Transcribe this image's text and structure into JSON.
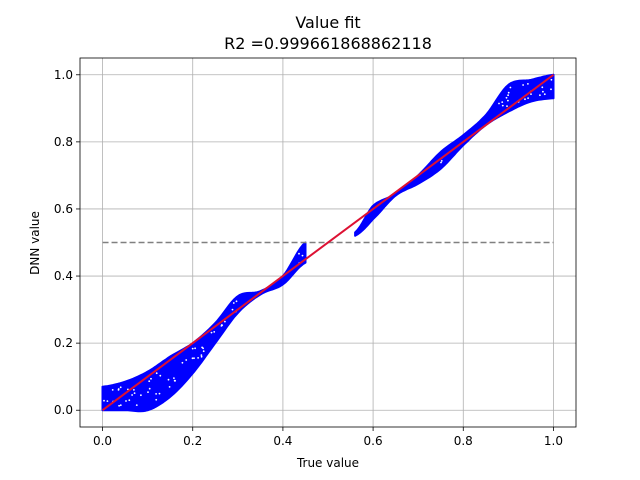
{
  "chart_data": {
    "type": "scatter",
    "title": "Value fit",
    "subtitle": "R2 =0.999661868862118",
    "xlabel": "True value",
    "ylabel": "DNN value",
    "xlim": [
      -0.05,
      1.05
    ],
    "ylim": [
      -0.05,
      1.05
    ],
    "xticks": [
      0.0,
      0.2,
      0.4,
      0.6,
      0.8,
      1.0
    ],
    "yticks": [
      0.0,
      0.2,
      0.4,
      0.6,
      0.8,
      1.0
    ],
    "xtick_labels": [
      "0.0",
      "0.2",
      "0.4",
      "0.6",
      "0.8",
      "1.0"
    ],
    "ytick_labels": [
      "0.0",
      "0.2",
      "0.4",
      "0.6",
      "0.8",
      "1.0"
    ],
    "grid": true,
    "series": [
      {
        "kind": "scatter-band",
        "color": "#0000ff",
        "x": [
          0.0,
          0.05,
          0.1,
          0.15,
          0.2,
          0.25,
          0.3,
          0.35,
          0.4,
          0.45
        ],
        "y_upper": [
          0.07,
          0.085,
          0.115,
          0.16,
          0.2,
          0.26,
          0.34,
          0.355,
          0.4,
          0.5
        ],
        "y_lower": [
          0.0,
          0.0,
          0.0,
          0.04,
          0.11,
          0.2,
          0.29,
          0.345,
          0.375,
          0.44
        ]
      },
      {
        "kind": "scatter-band",
        "color": "#0000ff",
        "x": [
          0.56,
          0.6,
          0.65,
          0.7,
          0.75,
          0.8,
          0.85,
          0.9,
          0.95,
          1.0
        ],
        "y_upper": [
          0.53,
          0.61,
          0.645,
          0.7,
          0.77,
          0.82,
          0.88,
          0.97,
          0.985,
          1.0
        ],
        "y_lower": [
          0.52,
          0.57,
          0.64,
          0.675,
          0.72,
          0.79,
          0.85,
          0.89,
          0.92,
          0.93
        ]
      },
      {
        "kind": "line",
        "color": "#dd1133",
        "x": [
          0.0,
          1.0
        ],
        "y": [
          0.0,
          1.0
        ]
      },
      {
        "kind": "dashed-line",
        "color": "#808080",
        "x": [
          0.0,
          1.0
        ],
        "y": [
          0.5,
          0.5
        ]
      }
    ]
  }
}
